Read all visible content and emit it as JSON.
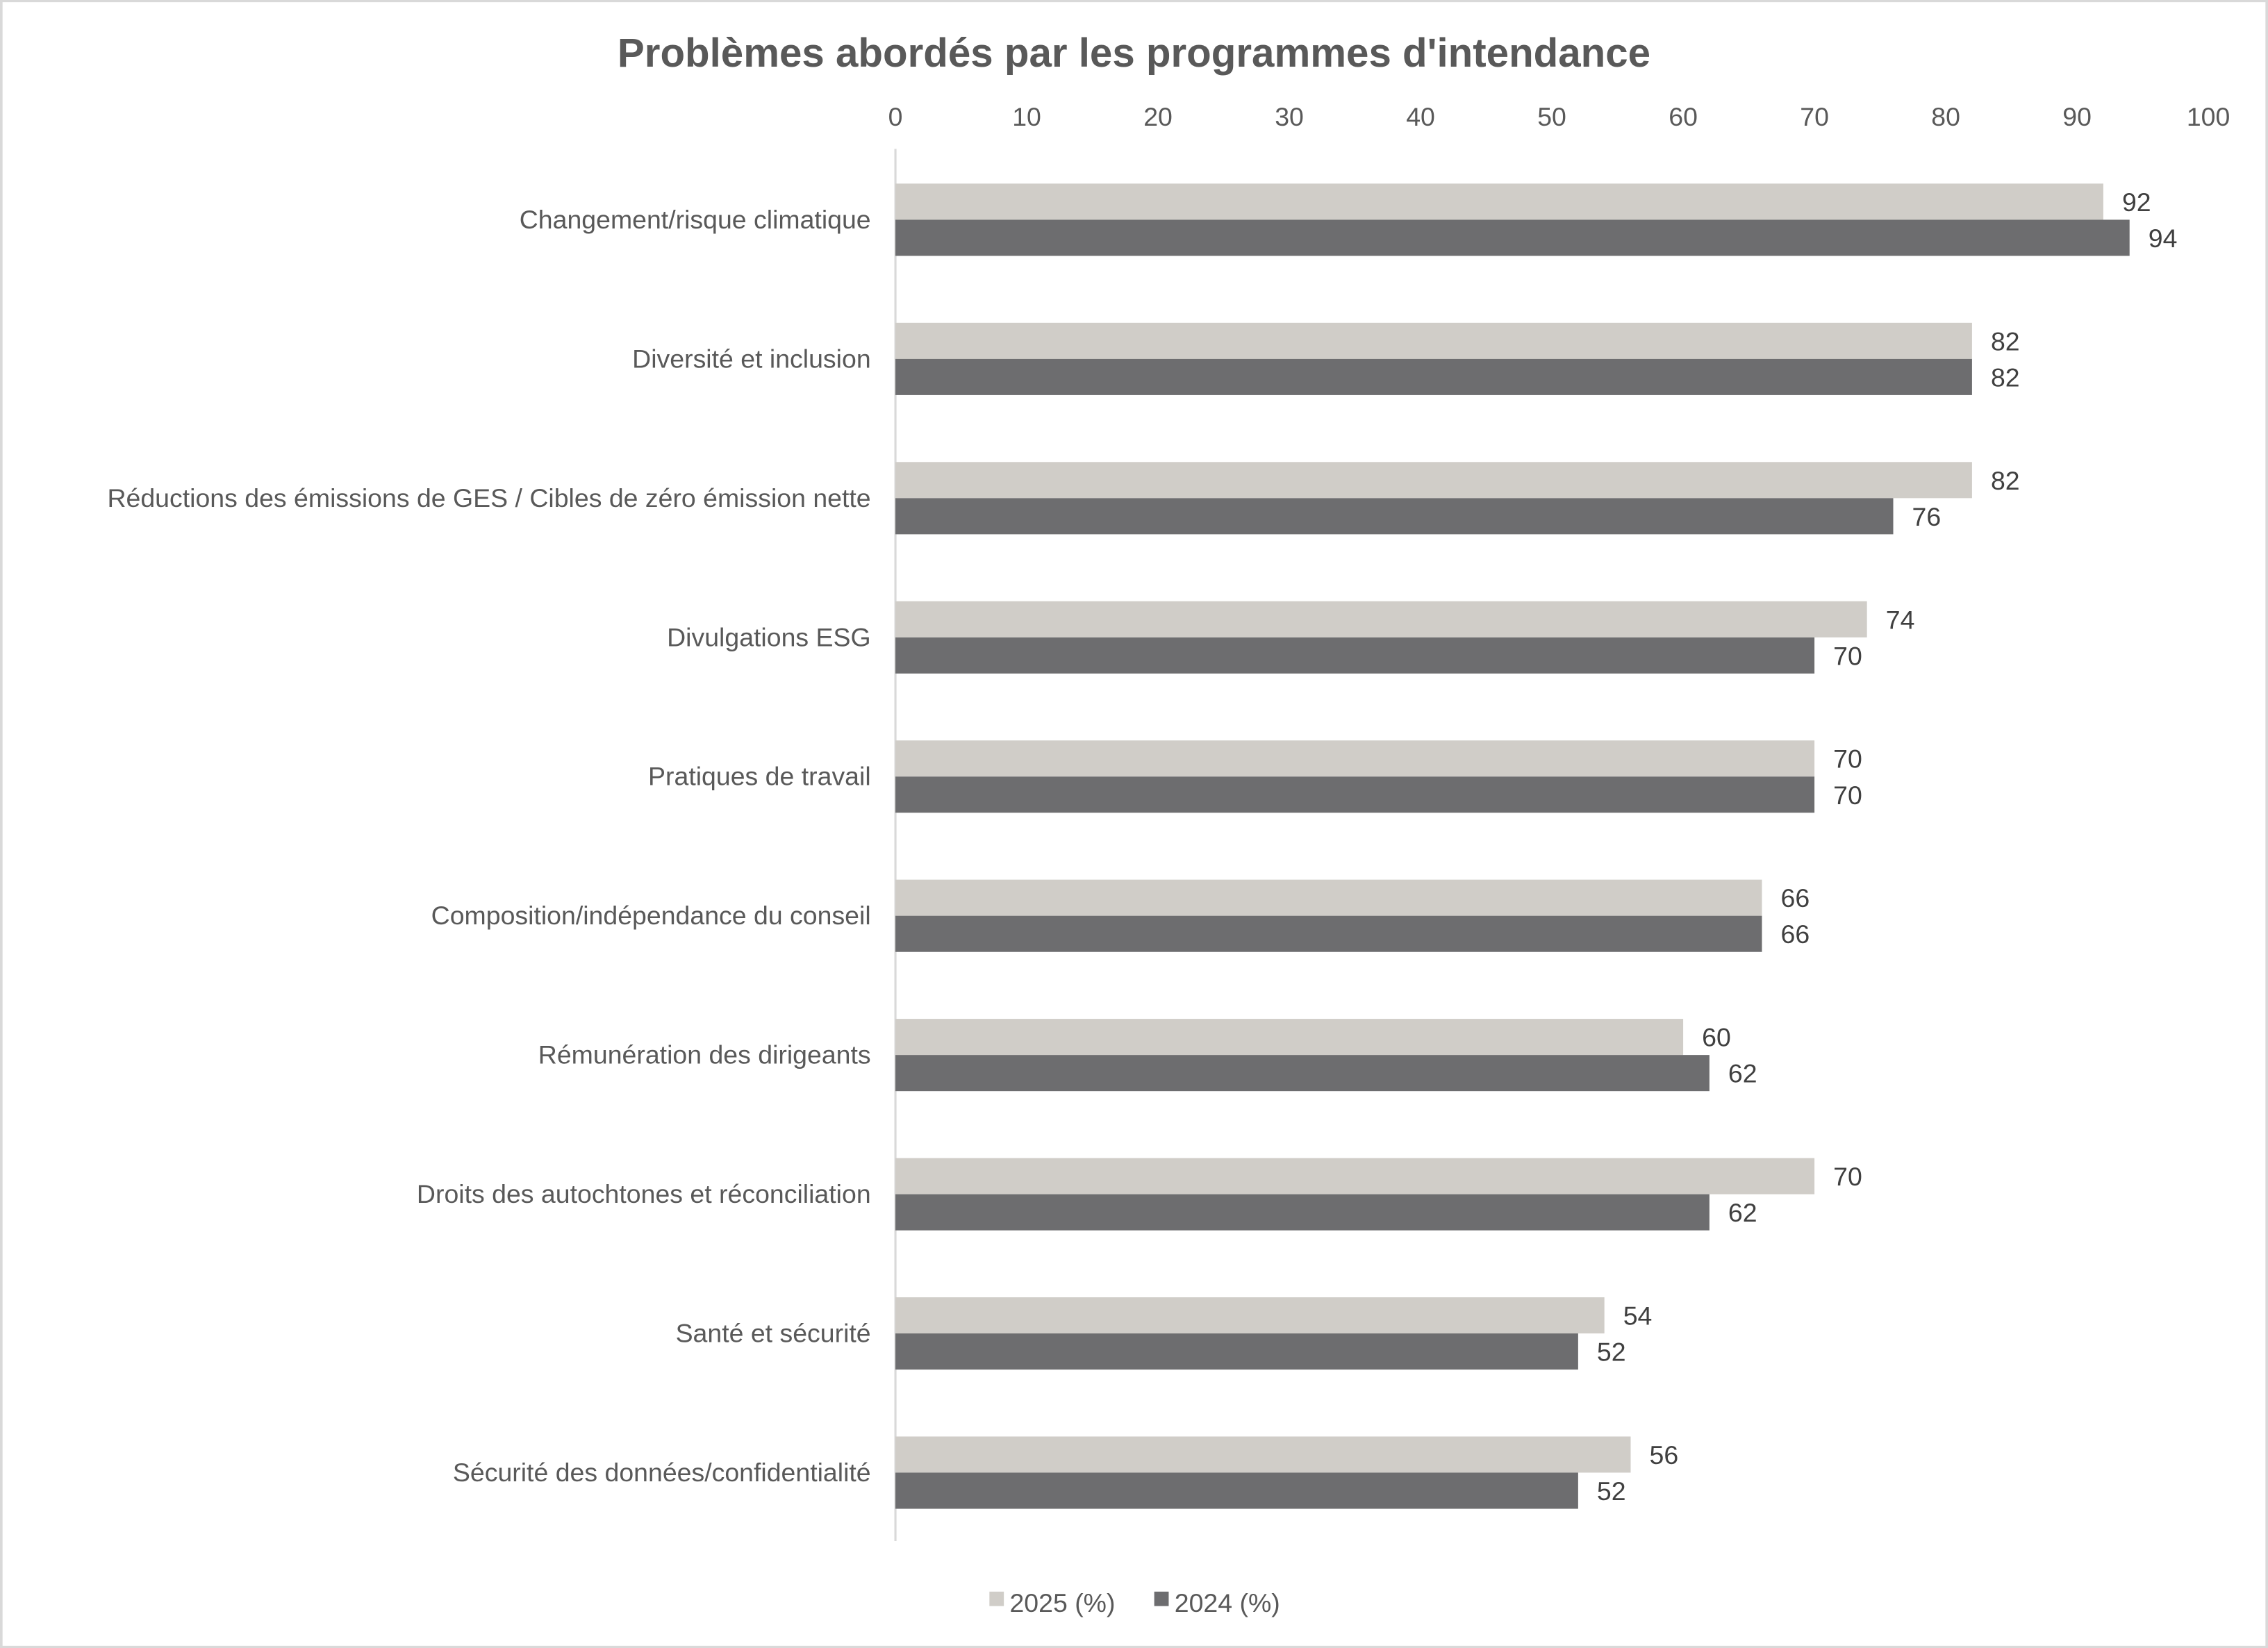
{
  "chart_data": {
    "type": "bar",
    "orientation": "horizontal",
    "title": "Problèmes abordés par les programmes d'intendance",
    "xlabel": "",
    "ylabel": "",
    "xlim": [
      0,
      100
    ],
    "x_ticks": [
      "0",
      "10",
      "20",
      "30",
      "40",
      "50",
      "60",
      "70",
      "80",
      "90",
      "100"
    ],
    "axis_position": "top",
    "grid": false,
    "legend_position": "bottom",
    "categories": [
      "Changement/risque climatique",
      "Diversité et inclusion",
      "Réductions des émissions de GES / Cibles de zéro émission nette",
      "Divulgations ESG",
      "Pratiques de travail",
      "Composition/indépendance du conseil",
      "Rémunération des dirigeants",
      "Droits des autochtones et réconciliation",
      "Santé et sécurité",
      "Sécurité des données/confidentialité"
    ],
    "series": [
      {
        "name": "2025 (%)",
        "color": "#d0cdc8",
        "values": [
          92,
          82,
          82,
          74,
          70,
          66,
          60,
          70,
          54,
          56
        ]
      },
      {
        "name": "2024 (%)",
        "color": "#6d6d6f",
        "values": [
          94,
          82,
          76,
          70,
          70,
          66,
          62,
          62,
          52,
          52
        ]
      }
    ],
    "data_labels": true
  }
}
